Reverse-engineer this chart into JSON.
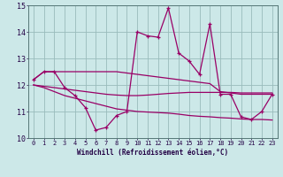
{
  "xlabel": "Windchill (Refroidissement éolien,°C)",
  "bg_color": "#cce8e8",
  "line_color": "#990066",
  "grid_color": "#99bbbb",
  "hours": [
    0,
    1,
    2,
    3,
    4,
    5,
    6,
    7,
    8,
    9,
    10,
    11,
    12,
    13,
    14,
    15,
    16,
    17,
    18,
    19,
    20,
    21,
    22,
    23
  ],
  "windchill": [
    12.2,
    12.5,
    12.5,
    11.9,
    11.6,
    11.15,
    10.3,
    10.4,
    10.85,
    11.0,
    14.0,
    13.85,
    13.8,
    14.9,
    13.2,
    12.9,
    12.4,
    14.3,
    11.65,
    11.65,
    10.8,
    10.7,
    11.0,
    11.65
  ],
  "upper_flat": [
    12.2,
    12.5,
    12.5,
    12.5,
    12.5,
    12.5,
    12.5,
    12.5,
    12.5,
    12.45,
    12.4,
    12.35,
    12.3,
    12.25,
    12.2,
    12.15,
    12.1,
    12.05,
    11.75,
    11.7,
    11.65,
    11.65,
    11.65,
    11.65
  ],
  "mid_diag": [
    12.0,
    11.95,
    11.9,
    11.85,
    11.8,
    11.75,
    11.7,
    11.65,
    11.62,
    11.6,
    11.6,
    11.62,
    11.65,
    11.68,
    11.7,
    11.72,
    11.72,
    11.72,
    11.72,
    11.72,
    11.7,
    11.7,
    11.7,
    11.7
  ],
  "low_diag": [
    12.0,
    11.9,
    11.75,
    11.6,
    11.5,
    11.4,
    11.3,
    11.2,
    11.1,
    11.05,
    11.0,
    10.98,
    10.96,
    10.94,
    10.9,
    10.85,
    10.82,
    10.8,
    10.77,
    10.75,
    10.72,
    10.7,
    10.7,
    10.68
  ],
  "ylim": [
    10.0,
    15.0
  ],
  "yticks": [
    10,
    11,
    12,
    13,
    14,
    15
  ]
}
